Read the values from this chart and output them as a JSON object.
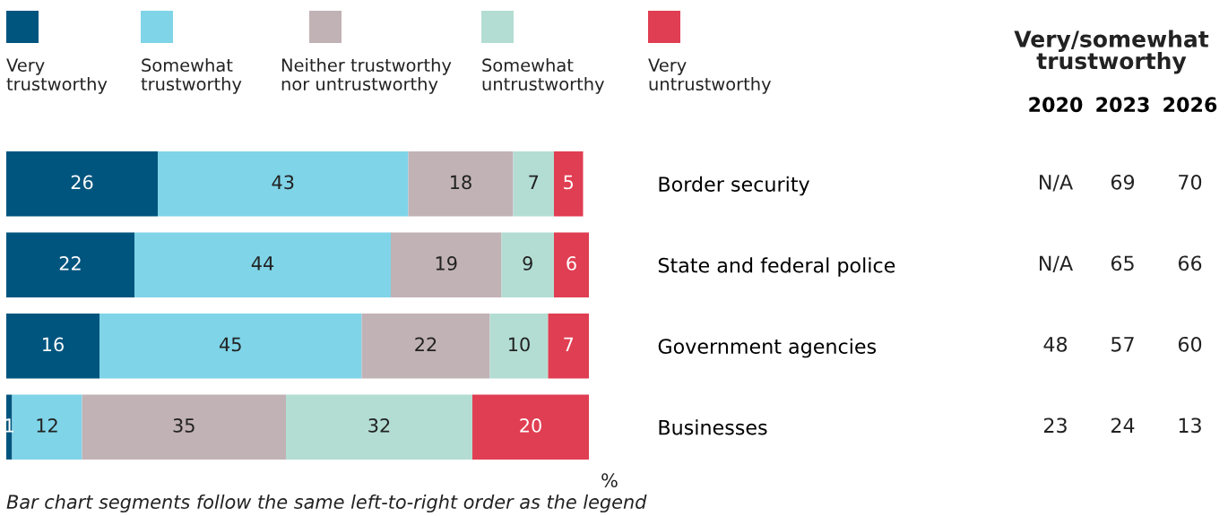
{
  "chart_data": [
    {
      "type": "bar",
      "orientation": "horizontal",
      "stacked": true,
      "data_labels": true,
      "legend": "top",
      "xlim": [
        0,
        100
      ],
      "categories": [
        "Border security",
        "State and federal police",
        "Government agencies",
        "Businesses"
      ],
      "series": [
        {
          "name": "Very trustworthy",
          "color": "#00557f",
          "values": [
            26,
            22,
            16,
            1
          ]
        },
        {
          "name": "Somewhat trustworthy",
          "color": "#7fd4e8",
          "values": [
            43,
            44,
            45,
            12
          ]
        },
        {
          "name": "Neither trustworthy nor untrustworthy",
          "color": "#c1b2b5",
          "values": [
            18,
            19,
            22,
            35
          ]
        },
        {
          "name": "Somewhat untrustworthy",
          "color": "#b3ddd3",
          "values": [
            7,
            9,
            10,
            32
          ]
        },
        {
          "name": "Very untrustworthy",
          "color": "#e03e52",
          "values": [
            5,
            6,
            7,
            20
          ]
        }
      ],
      "annotations": [
        "%",
        "Bar chart segments follow the same left-to-right order as the legend"
      ]
    },
    {
      "type": "other",
      "data_labels": true,
      "title": "Very/somewhat trustworthy",
      "categories": [
        "2020",
        "2023",
        "2026"
      ],
      "series": [
        {
          "values": [
            null,
            69,
            70
          ]
        },
        {
          "values": [
            null,
            65,
            66
          ]
        },
        {
          "values": [
            48,
            57,
            60
          ]
        },
        {
          "values": [
            23,
            24,
            13
          ]
        }
      ],
      "annotations": [
        "N/A",
        "N/A"
      ]
    }
  ]
}
